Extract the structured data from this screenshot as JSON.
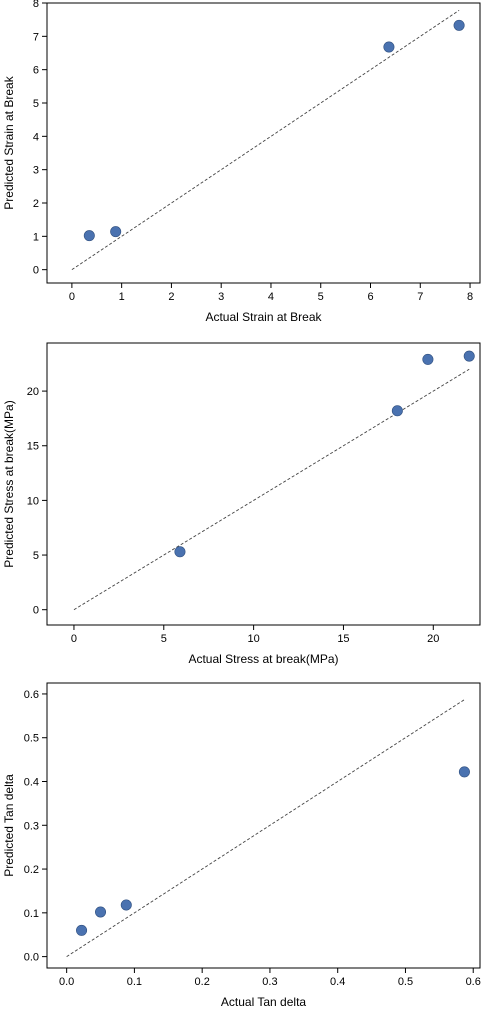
{
  "chart_data": [
    {
      "type": "scatter",
      "xlabel": "Actual Strain at Break",
      "ylabel": "Predicted Strain at Break",
      "xlim": [
        -0.5,
        8.2
      ],
      "ylim": [
        -0.4,
        8.0
      ],
      "xticks": [
        0,
        1,
        2,
        3,
        4,
        5,
        6,
        7,
        8
      ],
      "yticks": [
        0,
        1,
        2,
        3,
        4,
        5,
        6,
        7,
        8
      ],
      "x": [
        0.35,
        0.88,
        6.37,
        7.78
      ],
      "y": [
        1.02,
        1.14,
        6.68,
        7.33
      ],
      "reference_line": [
        [
          0,
          0
        ],
        [
          7.78,
          7.78
        ]
      ],
      "point_color": "#4a72b0",
      "grid": false
    },
    {
      "type": "scatter",
      "xlabel": "Actual Stress at break(MPa)",
      "ylabel": "Predicted Stress at break(MPa)",
      "xlim": [
        -1.5,
        22.6
      ],
      "ylim": [
        -1.4,
        24.4
      ],
      "xticks": [
        0,
        5,
        10,
        15,
        20
      ],
      "yticks": [
        0,
        5,
        10,
        15,
        20
      ],
      "x": [
        5.9,
        18.0,
        19.7,
        22.0
      ],
      "y": [
        5.3,
        18.2,
        22.9,
        23.2
      ],
      "reference_line": [
        [
          0,
          0
        ],
        [
          22.0,
          22.0
        ]
      ],
      "point_color": "#4a72b0",
      "grid": false
    },
    {
      "type": "scatter",
      "xlabel": "Actual Tan delta",
      "ylabel": "Predicted Tan delta",
      "xlim": [
        -0.029,
        0.61
      ],
      "ylim": [
        -0.026,
        0.625
      ],
      "xticks": [
        0.0,
        0.1,
        0.2,
        0.3,
        0.4,
        0.5,
        0.6
      ],
      "yticks": [
        0.0,
        0.1,
        0.2,
        0.3,
        0.4,
        0.5,
        0.6
      ],
      "tick_format": 1,
      "x": [
        0.022,
        0.05,
        0.088,
        0.587
      ],
      "y": [
        0.06,
        0.102,
        0.118,
        0.422
      ],
      "reference_line": [
        [
          0,
          0
        ],
        [
          0.587,
          0.587
        ]
      ],
      "point_color": "#4a72b0",
      "grid": false
    }
  ]
}
